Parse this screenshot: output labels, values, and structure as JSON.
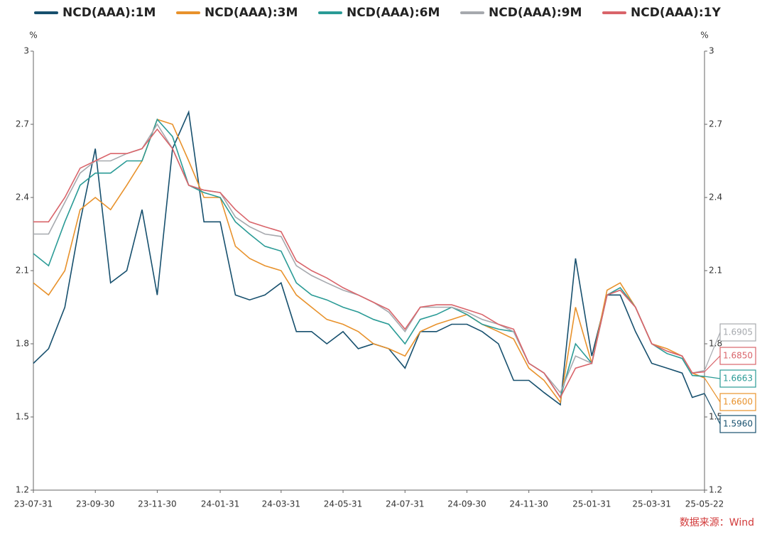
{
  "chart_data": {
    "type": "line",
    "ylabel": "%",
    "y2label": "%",
    "source": "数据来源：Wind",
    "categories": [
      "23-07-31",
      "23-08-15",
      "23-08-31",
      "23-09-15",
      "23-09-30",
      "23-10-15",
      "23-10-31",
      "23-11-15",
      "23-11-30",
      "23-12-15",
      "23-12-31",
      "24-01-15",
      "24-01-31",
      "24-02-15",
      "24-02-29",
      "24-03-15",
      "24-03-31",
      "24-04-15",
      "24-04-30",
      "24-05-15",
      "24-05-31",
      "24-06-15",
      "24-06-30",
      "24-07-15",
      "24-07-31",
      "24-08-15",
      "24-08-31",
      "24-09-15",
      "24-09-30",
      "24-10-15",
      "24-10-31",
      "24-11-15",
      "24-11-30",
      "24-12-15",
      "24-12-31",
      "25-01-15",
      "25-01-31",
      "25-02-15",
      "25-02-28",
      "25-03-15",
      "25-03-31",
      "25-04-15",
      "25-04-30",
      "25-05-10",
      "25-05-22"
    ],
    "xticks": [
      "23-07-31",
      "23-09-30",
      "23-11-30",
      "24-01-31",
      "24-03-31",
      "24-05-31",
      "24-07-31",
      "24-09-30",
      "24-11-30",
      "25-01-31",
      "25-03-31",
      "25-05-22"
    ],
    "ylim": [
      1.2,
      3
    ],
    "yticks": [
      1.2,
      1.5,
      1.8,
      2.1,
      2.4,
      2.7,
      3
    ],
    "y2lim": [
      1.2,
      3
    ],
    "y2ticks": [
      1.2,
      1.5,
      1.8,
      2.1,
      2.4,
      2.7,
      3
    ],
    "series": [
      {
        "name": "NCD(AAA):1M",
        "color": "#17506e",
        "last_label": "1.5960",
        "values": [
          1.72,
          1.78,
          1.95,
          2.3,
          2.6,
          2.05,
          2.1,
          2.35,
          2.0,
          2.6,
          2.75,
          2.3,
          2.3,
          2.0,
          1.98,
          2.0,
          2.05,
          1.85,
          1.85,
          1.8,
          1.85,
          1.78,
          1.8,
          1.78,
          1.7,
          1.85,
          1.85,
          1.88,
          1.88,
          1.85,
          1.8,
          1.65,
          1.65,
          1.6,
          1.55,
          2.15,
          1.75,
          2.0,
          2.0,
          1.85,
          1.72,
          1.7,
          1.68,
          1.58,
          1.596
        ]
      },
      {
        "name": "NCD(AAA):3M",
        "color": "#e8922c",
        "last_label": "1.6600",
        "values": [
          2.05,
          2.0,
          2.1,
          2.35,
          2.4,
          2.35,
          2.45,
          2.55,
          2.72,
          2.7,
          2.55,
          2.4,
          2.4,
          2.2,
          2.15,
          2.12,
          2.1,
          2.0,
          1.95,
          1.9,
          1.88,
          1.85,
          1.8,
          1.78,
          1.75,
          1.85,
          1.88,
          1.9,
          1.92,
          1.88,
          1.85,
          1.82,
          1.7,
          1.65,
          1.56,
          1.95,
          1.72,
          2.02,
          2.05,
          1.95,
          1.8,
          1.78,
          1.75,
          1.68,
          1.66
        ]
      },
      {
        "name": "NCD(AAA):6M",
        "color": "#2a9b96",
        "last_label": "1.6663",
        "values": [
          2.17,
          2.12,
          2.3,
          2.45,
          2.5,
          2.5,
          2.55,
          2.55,
          2.72,
          2.65,
          2.45,
          2.42,
          2.4,
          2.3,
          2.25,
          2.2,
          2.18,
          2.05,
          2.0,
          1.98,
          1.95,
          1.93,
          1.9,
          1.88,
          1.8,
          1.9,
          1.92,
          1.95,
          1.92,
          1.88,
          1.86,
          1.85,
          1.72,
          1.68,
          1.58,
          1.8,
          1.72,
          2.0,
          2.03,
          1.95,
          1.8,
          1.76,
          1.74,
          1.67,
          1.6663
        ]
      },
      {
        "name": "NCD(AAA):9M",
        "color": "#a6a9ae",
        "last_label": "1.6905",
        "values": [
          2.25,
          2.25,
          2.38,
          2.5,
          2.55,
          2.55,
          2.58,
          2.6,
          2.7,
          2.6,
          2.45,
          2.43,
          2.42,
          2.32,
          2.28,
          2.25,
          2.24,
          2.12,
          2.08,
          2.05,
          2.02,
          2.0,
          1.97,
          1.93,
          1.85,
          1.95,
          1.95,
          1.95,
          1.93,
          1.9,
          1.88,
          1.85,
          1.72,
          1.68,
          1.6,
          1.75,
          1.72,
          2.0,
          2.02,
          1.95,
          1.8,
          1.77,
          1.75,
          1.68,
          1.6905
        ]
      },
      {
        "name": "NCD(AAA):1Y",
        "color": "#d9646a",
        "last_label": "1.6850",
        "values": [
          2.3,
          2.3,
          2.4,
          2.52,
          2.55,
          2.58,
          2.58,
          2.6,
          2.68,
          2.6,
          2.45,
          2.43,
          2.42,
          2.35,
          2.3,
          2.28,
          2.26,
          2.14,
          2.1,
          2.07,
          2.03,
          2.0,
          1.97,
          1.94,
          1.86,
          1.95,
          1.96,
          1.96,
          1.94,
          1.92,
          1.88,
          1.86,
          1.72,
          1.68,
          1.58,
          1.7,
          1.72,
          2.0,
          2.02,
          1.95,
          1.8,
          1.77,
          1.75,
          1.68,
          1.685
        ]
      }
    ]
  }
}
